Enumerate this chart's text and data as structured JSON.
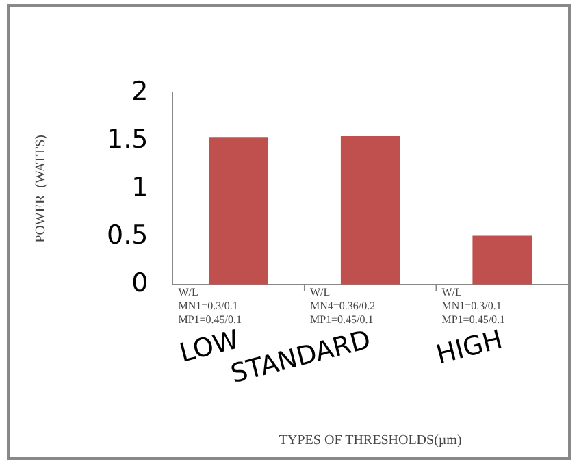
{
  "chart_data": {
    "type": "bar",
    "xlabel": "TYPES OF THRESHOLDS(µm)",
    "ylabel": "POWER  (WATTS)",
    "categories": [
      "LOW",
      "STANDARD",
      "HIGH"
    ],
    "values": [
      1.54,
      1.55,
      0.51
    ],
    "color": "#c0504d",
    "ylim": [
      0,
      2
    ],
    "yticks": [
      0,
      0.5,
      1,
      1.5,
      2
    ],
    "grid": false,
    "legend": false,
    "annotations": [
      "W/L\nMN1=0.3/0.1\nMP1=0.45/0.1",
      "W/L\nMN4=0.36/0.2\nMP1=0.45/0.1",
      "W/L\nMN1=0.3/0.1\nMP1=0.45/0.1"
    ]
  }
}
